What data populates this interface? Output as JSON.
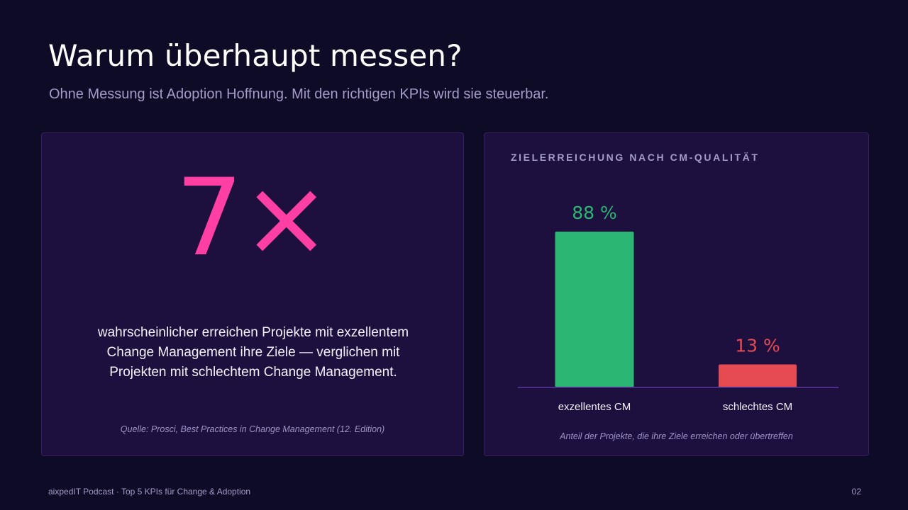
{
  "header": {
    "title": "Warum überhaupt messen?",
    "subtitle": "Ohne Messung ist Adoption Hoffnung. Mit den richtigen KPIs wird sie steuerbar."
  },
  "stat_card": {
    "value": "7×",
    "description": "wahrscheinlicher erreichen Projekte mit exzellentem Change Management ihre Ziele — verglichen mit Projekten mit schlechtem Change Management.",
    "source": "Quelle: Prosci, Best Practices in Change Management (12. Edition)"
  },
  "footer": {
    "left": "aixpedIT Podcast · Top 5 KPIs für Change & Adoption",
    "page": "02"
  },
  "colors": {
    "background": "#0e0b26",
    "card": "#1d0f3e",
    "accent_pink": "#ff3fa4",
    "good": "#2bb673",
    "bad": "#e54b51",
    "muted": "#a49cc9"
  },
  "chart_data": {
    "type": "bar",
    "title": "ZIELERREICHUNG NACH CM-QUALITÄT",
    "categories": [
      "exzellentes CM",
      "schlechtes CM"
    ],
    "values": [
      88,
      13
    ],
    "data_labels": [
      "88 %",
      "13 %"
    ],
    "colors": [
      "#2bb673",
      "#e54b51"
    ],
    "caption": "Anteil der Projekte, die ihre Ziele erreichen oder übertreffen",
    "ylim": [
      0,
      100
    ],
    "grid": false,
    "xlabel": "",
    "ylabel": ""
  }
}
